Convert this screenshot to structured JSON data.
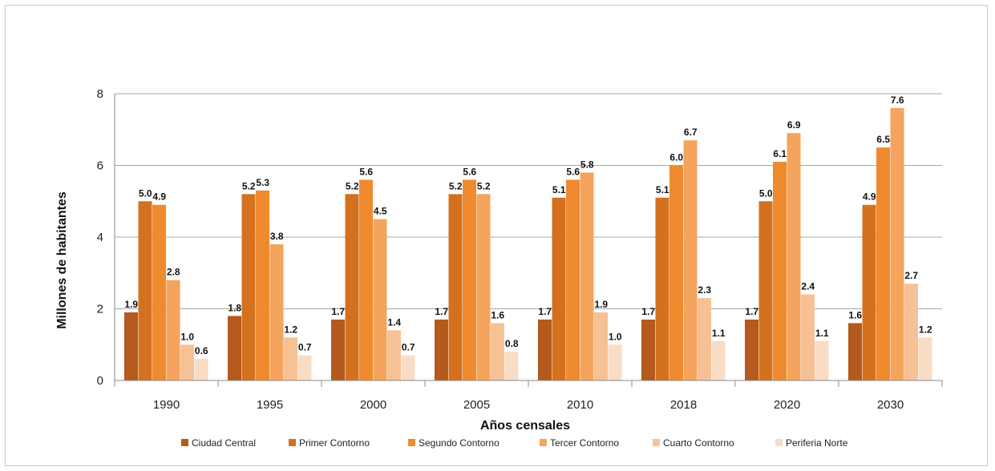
{
  "chart_data": {
    "type": "bar",
    "xlabel": "Años censales",
    "ylabel": "Millones de habitantes",
    "ylim": [
      0,
      8
    ],
    "yticks": [
      0,
      2,
      4,
      6,
      8
    ],
    "grid": true,
    "legend_position": "bottom",
    "categories": [
      "1990",
      "1995",
      "2000",
      "2005",
      "2010",
      "2018",
      "2020",
      "2030"
    ],
    "series": [
      {
        "name": "Ciudad Central",
        "color": "#b35a1c",
        "values": [
          1.9,
          1.8,
          1.7,
          1.7,
          1.7,
          1.7,
          1.7,
          1.6
        ]
      },
      {
        "name": "Primer Contorno",
        "color": "#d4711f",
        "values": [
          5.0,
          5.2,
          5.2,
          5.2,
          5.1,
          5.1,
          5.0,
          4.9
        ]
      },
      {
        "name": "Segundo Contorno",
        "color": "#ef8a2e",
        "values": [
          4.9,
          5.3,
          5.6,
          5.6,
          5.6,
          6.0,
          6.1,
          6.5
        ]
      },
      {
        "name": "Tercer Contorno",
        "color": "#f4a45c",
        "values": [
          2.8,
          3.8,
          4.5,
          5.2,
          5.8,
          6.7,
          6.9,
          7.6
        ]
      },
      {
        "name": "Cuarto Contorno",
        "color": "#f7c196",
        "values": [
          1.0,
          1.2,
          1.4,
          1.6,
          1.9,
          2.3,
          2.4,
          2.7
        ]
      },
      {
        "name": "Periferia Norte",
        "color": "#f9dcc4",
        "values": [
          0.6,
          0.7,
          0.7,
          0.8,
          1.0,
          1.1,
          1.1,
          1.2
        ]
      }
    ]
  }
}
